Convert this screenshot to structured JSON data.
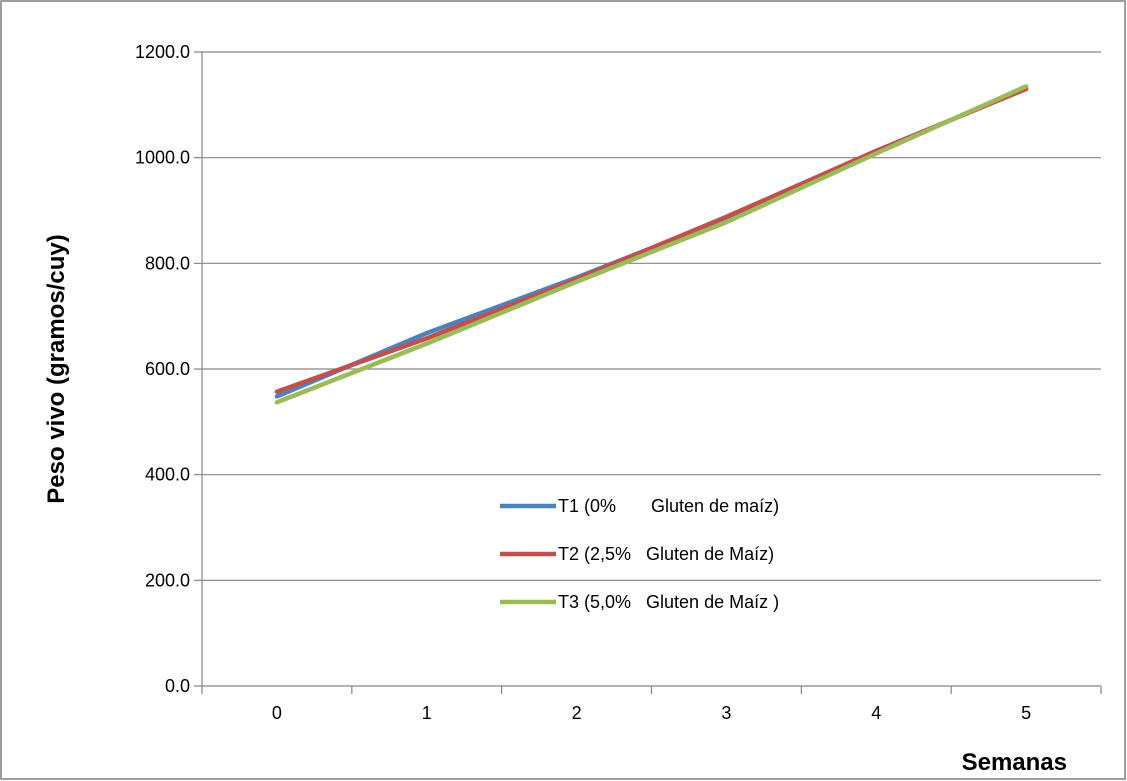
{
  "chart_data": {
    "type": "line",
    "title": "",
    "xlabel": "Semanas",
    "ylabel": "Peso vivo (gramos/cuy)",
    "categories": [
      "0",
      "1",
      "2",
      "3",
      "4",
      "5"
    ],
    "y_ticks": [
      "0.0",
      "200.0",
      "400.0",
      "600.0",
      "800.0",
      "1000.0",
      "1200.0"
    ],
    "ylim": [
      0,
      1200
    ],
    "grid": "horizontal",
    "legend_position": "center",
    "series": [
      {
        "name": "T1 (0%       Gluten de maíz)",
        "color": "#4F81BD",
        "values": [
          548,
          668,
          773,
          885,
          1010,
          1133
        ]
      },
      {
        "name": "T2 (2,5%   Gluten de Maíz)",
        "color": "#C0504D",
        "values": [
          557,
          658,
          770,
          888,
          1013,
          1130
        ]
      },
      {
        "name": "T3 (5,0%   Gluten de Maíz )",
        "color": "#9BBB59",
        "values": [
          537,
          648,
          765,
          878,
          1008,
          1135
        ]
      }
    ]
  }
}
